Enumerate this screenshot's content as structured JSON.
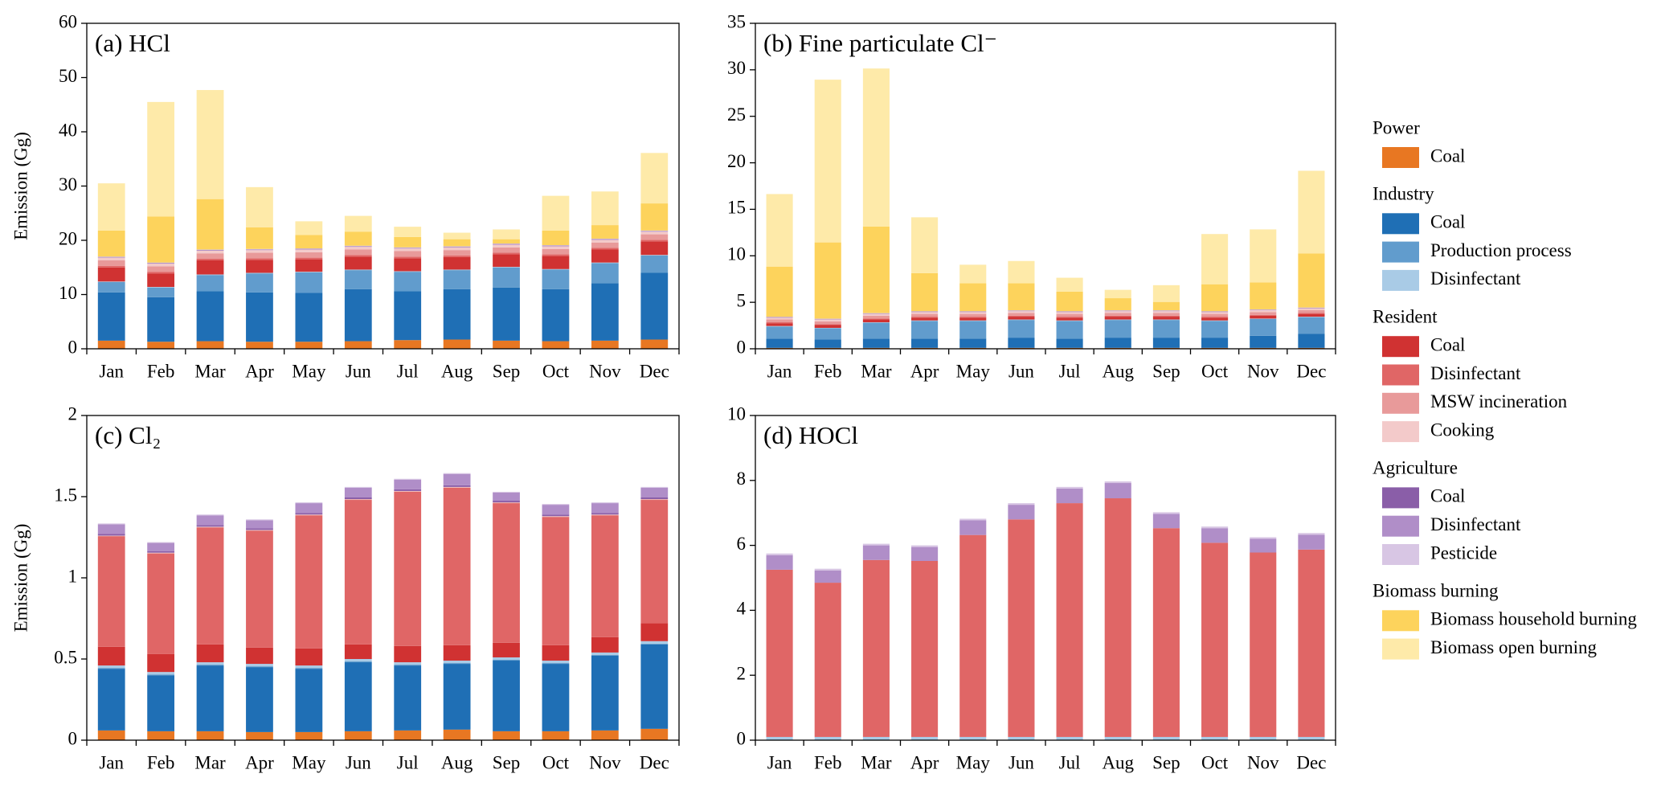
{
  "chart_data": [
    {
      "type": "bar",
      "title": "(a) HCl",
      "ylabel": "Emission (Gg)",
      "categories": [
        "Jan",
        "Feb",
        "Mar",
        "Apr",
        "May",
        "Jun",
        "Jul",
        "Aug",
        "Sep",
        "Oct",
        "Nov",
        "Dec"
      ],
      "ylim": [
        0,
        60
      ],
      "yticks": [
        0,
        10,
        20,
        30,
        40,
        50,
        60
      ],
      "series": [
        {
          "values": [
            1.5,
            1.3,
            1.4,
            1.3,
            1.3,
            1.4,
            1.6,
            1.7,
            1.5,
            1.4,
            1.5,
            1.7
          ]
        },
        {
          "values": [
            8.9,
            8.2,
            9.2,
            9.1,
            9.0,
            9.6,
            9.0,
            9.3,
            9.8,
            9.6,
            10.6,
            12.3
          ]
        },
        {
          "values": [
            1.9,
            1.8,
            3.0,
            3.5,
            3.8,
            3.5,
            3.6,
            3.5,
            3.7,
            3.6,
            3.7,
            3.2
          ]
        },
        {
          "values": [
            0.1,
            0.1,
            0.1,
            0.1,
            0.1,
            0.1,
            0.1,
            0.1,
            0.1,
            0.1,
            0.1,
            0.1
          ]
        },
        {
          "values": [
            2.6,
            2.5,
            2.6,
            2.4,
            2.3,
            2.4,
            2.4,
            2.3,
            2.3,
            2.4,
            2.4,
            2.5
          ]
        },
        {
          "values": [
            0.3,
            0.3,
            0.3,
            0.3,
            0.3,
            0.3,
            0.3,
            0.3,
            0.3,
            0.3,
            0.3,
            0.3
          ]
        },
        {
          "values": [
            1.0,
            1.0,
            1.0,
            1.0,
            1.0,
            1.0,
            1.0,
            1.0,
            1.0,
            1.0,
            1.0,
            1.0
          ]
        },
        {
          "values": [
            0.5,
            0.5,
            0.5,
            0.5,
            0.5,
            0.5,
            0.5,
            0.5,
            0.5,
            0.5,
            0.5,
            0.5
          ]
        },
        {
          "values": [
            0.05,
            0.05,
            0.05,
            0.05,
            0.05,
            0.05,
            0.05,
            0.05,
            0.05,
            0.05,
            0.05,
            0.05
          ]
        },
        {
          "values": [
            0.1,
            0.1,
            0.1,
            0.1,
            0.1,
            0.1,
            0.1,
            0.1,
            0.1,
            0.1,
            0.1,
            0.1
          ]
        },
        {
          "values": [
            0.05,
            0.05,
            0.05,
            0.05,
            0.05,
            0.05,
            0.05,
            0.05,
            0.05,
            0.05,
            0.05,
            0.05
          ]
        },
        {
          "values": [
            4.8,
            8.5,
            9.3,
            4.0,
            2.5,
            2.6,
            1.9,
            1.3,
            0.8,
            2.7,
            2.5,
            5.0
          ]
        },
        {
          "values": [
            8.7,
            21.1,
            20.1,
            7.4,
            2.5,
            2.9,
            1.9,
            1.2,
            1.8,
            6.4,
            6.2,
            9.3
          ]
        }
      ]
    },
    {
      "type": "bar",
      "title": "(b) Fine particulate Cl⁻",
      "categories": [
        "Jan",
        "Feb",
        "Mar",
        "Apr",
        "May",
        "Jun",
        "Jul",
        "Aug",
        "Sep",
        "Oct",
        "Nov",
        "Dec"
      ],
      "ylim": [
        0,
        35
      ],
      "yticks": [
        0,
        5,
        10,
        15,
        20,
        25,
        30,
        35
      ],
      "series": [
        {
          "values": [
            0.1,
            0.1,
            0.1,
            0.1,
            0.1,
            0.1,
            0.1,
            0.1,
            0.1,
            0.1,
            0.1,
            0.1
          ]
        },
        {
          "values": [
            1.0,
            0.9,
            1.0,
            1.0,
            1.0,
            1.1,
            1.0,
            1.1,
            1.1,
            1.1,
            1.3,
            1.5
          ]
        },
        {
          "values": [
            1.3,
            1.2,
            1.7,
            1.9,
            1.9,
            1.9,
            1.9,
            1.9,
            1.9,
            1.8,
            1.8,
            1.8
          ]
        },
        {
          "values": [
            0.05,
            0.05,
            0.05,
            0.05,
            0.05,
            0.05,
            0.05,
            0.05,
            0.05,
            0.05,
            0.05,
            0.05
          ]
        },
        {
          "values": [
            0.3,
            0.3,
            0.3,
            0.3,
            0.3,
            0.3,
            0.3,
            0.3,
            0.3,
            0.3,
            0.3,
            0.3
          ]
        },
        {
          "values": [
            0.1,
            0.1,
            0.1,
            0.1,
            0.1,
            0.1,
            0.1,
            0.1,
            0.1,
            0.1,
            0.1,
            0.1
          ]
        },
        {
          "values": [
            0.3,
            0.3,
            0.3,
            0.3,
            0.3,
            0.3,
            0.3,
            0.3,
            0.3,
            0.3,
            0.3,
            0.3
          ]
        },
        {
          "values": [
            0.2,
            0.2,
            0.2,
            0.2,
            0.2,
            0.2,
            0.2,
            0.2,
            0.2,
            0.2,
            0.2,
            0.2
          ]
        },
        {
          "values": [
            0.02,
            0.02,
            0.02,
            0.02,
            0.02,
            0.02,
            0.02,
            0.02,
            0.02,
            0.02,
            0.02,
            0.02
          ]
        },
        {
          "values": [
            0.05,
            0.05,
            0.05,
            0.05,
            0.05,
            0.05,
            0.05,
            0.05,
            0.05,
            0.05,
            0.05,
            0.05
          ]
        },
        {
          "values": [
            0.02,
            0.02,
            0.02,
            0.02,
            0.02,
            0.02,
            0.02,
            0.02,
            0.02,
            0.02,
            0.02,
            0.02
          ]
        },
        {
          "values": [
            5.4,
            8.2,
            9.3,
            4.1,
            3.0,
            2.9,
            2.1,
            1.3,
            0.9,
            2.9,
            2.9,
            5.8
          ]
        },
        {
          "values": [
            7.8,
            17.5,
            17.0,
            6.0,
            2.0,
            2.4,
            1.5,
            0.9,
            1.8,
            5.4,
            5.7,
            8.9
          ]
        }
      ]
    },
    {
      "type": "bar",
      "title": "(c) Cl₂",
      "ylabel": "Emission (Gg)",
      "categories": [
        "Jan",
        "Feb",
        "Mar",
        "Apr",
        "May",
        "Jun",
        "Jul",
        "Aug",
        "Sep",
        "Oct",
        "Nov",
        "Dec"
      ],
      "ylim": [
        0,
        2
      ],
      "yticks": [
        0,
        0.5,
        1,
        1.5,
        2
      ],
      "series": [
        {
          "values": [
            0.06,
            0.055,
            0.055,
            0.05,
            0.05,
            0.055,
            0.06,
            0.065,
            0.055,
            0.055,
            0.06,
            0.07
          ]
        },
        {
          "values": [
            0.38,
            0.345,
            0.405,
            0.4,
            0.39,
            0.425,
            0.4,
            0.405,
            0.435,
            0.415,
            0.46,
            0.52
          ]
        },
        {
          "values": [
            0.005,
            0.005,
            0.005,
            0.005,
            0.005,
            0.005,
            0.005,
            0.005,
            0.005,
            0.005,
            0.005,
            0.005
          ]
        },
        {
          "values": [
            0.015,
            0.015,
            0.015,
            0.015,
            0.015,
            0.015,
            0.015,
            0.015,
            0.015,
            0.015,
            0.015,
            0.015
          ]
        },
        {
          "values": [
            0.115,
            0.11,
            0.11,
            0.1,
            0.105,
            0.09,
            0.1,
            0.095,
            0.09,
            0.095,
            0.095,
            0.11
          ]
        },
        {
          "values": [
            0.68,
            0.62,
            0.72,
            0.72,
            0.82,
            0.89,
            0.95,
            0.97,
            0.86,
            0.79,
            0.75,
            0.76
          ]
        },
        {
          "values": [
            0.003,
            0.003,
            0.003,
            0.003,
            0.003,
            0.003,
            0.003,
            0.003,
            0.003,
            0.003,
            0.003,
            0.003
          ]
        },
        {
          "values": [
            0.002,
            0.002,
            0.002,
            0.002,
            0.002,
            0.002,
            0.002,
            0.002,
            0.002,
            0.002,
            0.002,
            0.002
          ]
        },
        {
          "values": [
            0.01,
            0.01,
            0.01,
            0.01,
            0.01,
            0.01,
            0.01,
            0.01,
            0.01,
            0.01,
            0.01,
            0.01
          ]
        },
        {
          "values": [
            0.06,
            0.05,
            0.06,
            0.05,
            0.06,
            0.06,
            0.06,
            0.07,
            0.05,
            0.06,
            0.06,
            0.06
          ]
        },
        {
          "values": [
            0.005,
            0.005,
            0.005,
            0.005,
            0.005,
            0.005,
            0.005,
            0.005,
            0.005,
            0.005,
            0.005,
            0.005
          ]
        },
        {
          "values": [
            0,
            0,
            0,
            0,
            0,
            0,
            0,
            0,
            0,
            0,
            0,
            0
          ]
        },
        {
          "values": [
            0,
            0,
            0,
            0,
            0,
            0,
            0,
            0,
            0,
            0,
            0,
            0
          ]
        }
      ]
    },
    {
      "type": "bar",
      "title": "(d) HOCl",
      "categories": [
        "Jan",
        "Feb",
        "Mar",
        "Apr",
        "May",
        "Jun",
        "Jul",
        "Aug",
        "Sep",
        "Oct",
        "Nov",
        "Dec"
      ],
      "ylim": [
        0,
        10
      ],
      "yticks": [
        0,
        2,
        4,
        6,
        8,
        10
      ],
      "series": [
        {
          "values": [
            0,
            0,
            0,
            0,
            0,
            0,
            0,
            0,
            0,
            0,
            0,
            0
          ]
        },
        {
          "values": [
            0,
            0,
            0,
            0,
            0,
            0,
            0,
            0,
            0,
            0,
            0,
            0
          ]
        },
        {
          "values": [
            0,
            0,
            0,
            0,
            0,
            0,
            0,
            0,
            0,
            0,
            0,
            0
          ]
        },
        {
          "values": [
            0.1,
            0.1,
            0.1,
            0.1,
            0.1,
            0.1,
            0.1,
            0.1,
            0.1,
            0.1,
            0.1,
            0.1
          ]
        },
        {
          "values": [
            0,
            0,
            0,
            0,
            0,
            0,
            0,
            0,
            0,
            0,
            0,
            0
          ]
        },
        {
          "values": [
            5.15,
            4.75,
            5.45,
            5.42,
            6.22,
            6.7,
            7.2,
            7.35,
            6.43,
            5.98,
            5.68,
            5.77
          ]
        },
        {
          "values": [
            0,
            0,
            0,
            0,
            0,
            0,
            0,
            0,
            0,
            0,
            0,
            0
          ]
        },
        {
          "values": [
            0,
            0,
            0,
            0,
            0,
            0,
            0,
            0,
            0,
            0,
            0,
            0
          ]
        },
        {
          "values": [
            0,
            0,
            0,
            0,
            0,
            0,
            0,
            0,
            0,
            0,
            0,
            0
          ]
        },
        {
          "values": [
            0.45,
            0.38,
            0.45,
            0.43,
            0.45,
            0.45,
            0.45,
            0.47,
            0.44,
            0.45,
            0.42,
            0.46
          ]
        },
        {
          "values": [
            0.05,
            0.05,
            0.05,
            0.05,
            0.05,
            0.05,
            0.05,
            0.05,
            0.05,
            0.05,
            0.05,
            0.05
          ]
        },
        {
          "values": [
            0,
            0,
            0,
            0,
            0,
            0,
            0,
            0,
            0,
            0,
            0,
            0
          ]
        },
        {
          "values": [
            0,
            0,
            0,
            0,
            0,
            0,
            0,
            0,
            0,
            0,
            0,
            0
          ]
        }
      ]
    }
  ],
  "legend": [
    {
      "title": "Power",
      "items": [
        {
          "name": "Coal",
          "color": "#e87722"
        }
      ]
    },
    {
      "title": "Industry",
      "items": [
        {
          "name": "Coal",
          "color": "#1f6fb5"
        },
        {
          "name": "Production process",
          "color": "#619ccd"
        },
        {
          "name": "Disinfectant",
          "color": "#a9cbe6"
        }
      ]
    },
    {
      "title": "Resident",
      "items": [
        {
          "name": "Coal",
          "color": "#d03232"
        },
        {
          "name": "Disinfectant",
          "color": "#e06666"
        },
        {
          "name": "MSW incineration",
          "color": "#e89a9a"
        },
        {
          "name": "Cooking",
          "color": "#f3caca"
        }
      ]
    },
    {
      "title": "Agriculture",
      "items": [
        {
          "name": "Coal",
          "color": "#8a5ea8"
        },
        {
          "name": "Disinfectant",
          "color": "#b08ec8"
        },
        {
          "name": "Pesticide",
          "color": "#d8c6e4"
        }
      ]
    },
    {
      "title": "Biomass burning",
      "items": [
        {
          "name": "Biomass household burning",
          "color": "#fdd35c"
        },
        {
          "name": "Biomass open burning",
          "color": "#feeaa9"
        }
      ]
    }
  ]
}
